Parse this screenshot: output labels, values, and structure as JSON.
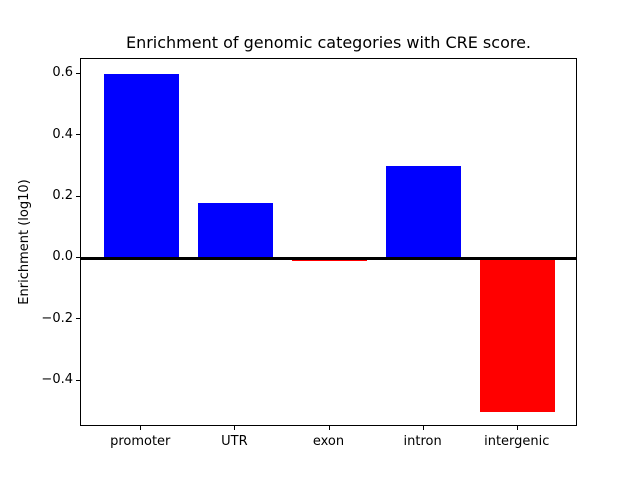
{
  "chart_data": {
    "type": "bar",
    "title": "Enrichment of genomic categories with CRE score.",
    "xlabel": "",
    "ylabel": "Enrichment (log10)",
    "categories": [
      "promoter",
      "UTR",
      "exon",
      "intron",
      "intergenic"
    ],
    "values": [
      0.6,
      0.18,
      -0.01,
      0.3,
      -0.5
    ],
    "bar_colors": [
      "#0000ff",
      "#0000ff",
      "#ff0000",
      "#0000ff",
      "#ff0000"
    ],
    "positive_color": "#0000ff",
    "negative_color": "#ff0000",
    "yticks": [
      -0.4,
      -0.2,
      0.0,
      0.2,
      0.4,
      0.6
    ],
    "ytick_labels": [
      "−0.4",
      "−0.2",
      "0.0",
      "0.2",
      "0.4",
      "0.6"
    ],
    "ylim": [
      -0.55,
      0.65
    ],
    "xlim": [
      -0.64,
      4.64
    ],
    "bar_width": 0.8,
    "grid": false,
    "legend": null,
    "zero_line": true,
    "zero_line_color": "#000000",
    "background_color": "#ffffff",
    "text_color": "#000000"
  }
}
